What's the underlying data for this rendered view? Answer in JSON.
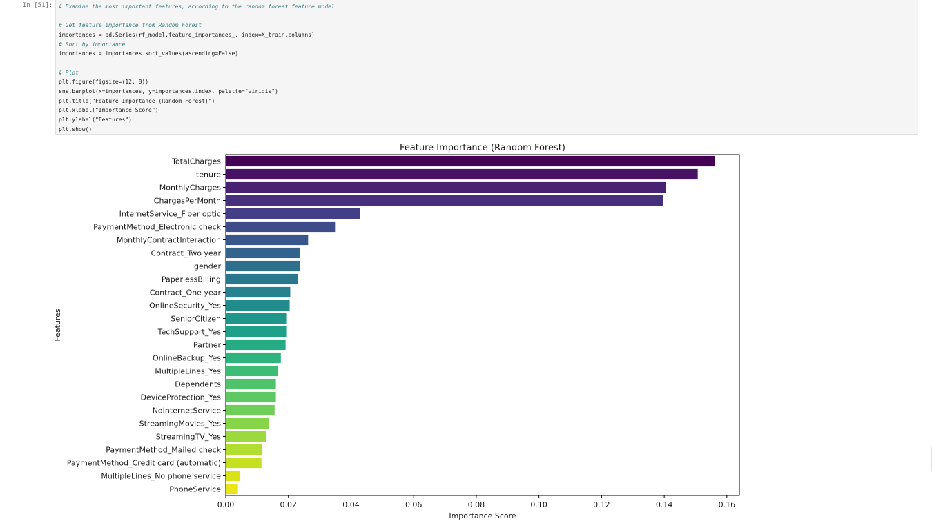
{
  "cell": {
    "prompt": "In [51]:",
    "code_lines": [
      {
        "text": "# Examine the most important features, according to the random forest feature model",
        "comment": true
      },
      {
        "text": "",
        "comment": false
      },
      {
        "text": "# Get feature importance from Random Forest",
        "comment": true
      },
      {
        "text": "importances = pd.Series(rf_model.feature_importances_, index=X_train.columns)",
        "comment": false
      },
      {
        "text": "# Sort by importance",
        "comment": true
      },
      {
        "text": "importances = importances.sort_values(ascending=False)",
        "comment": false
      },
      {
        "text": "",
        "comment": false
      },
      {
        "text": "# Plot",
        "comment": true
      },
      {
        "text": "plt.figure(figsize=(12, 8))",
        "comment": false
      },
      {
        "text": "sns.barplot(x=importances, y=importances.index, palette=\"viridis\")",
        "comment": false
      },
      {
        "text": "plt.title(\"Feature Importance (Random Forest)\")",
        "comment": false
      },
      {
        "text": "plt.xlabel(\"Importance Score\")",
        "comment": false
      },
      {
        "text": "plt.ylabel(\"Features\")",
        "comment": false
      },
      {
        "text": "plt.show()",
        "comment": false
      }
    ]
  },
  "chart_data": {
    "type": "bar",
    "orientation": "horizontal",
    "title": "Feature Importance (Random Forest)",
    "xlabel": "Importance Score",
    "ylabel": "Features",
    "xlim": [
      0,
      0.164
    ],
    "xticks": [
      0,
      0.02,
      0.04,
      0.06,
      0.08,
      0.1,
      0.12,
      0.14,
      0.16
    ],
    "xtick_labels": [
      "0.00",
      "0.02",
      "0.04",
      "0.06",
      "0.08",
      "0.10",
      "0.12",
      "0.14",
      "0.16"
    ],
    "grid": false,
    "palette": "viridis",
    "categories": [
      "TotalCharges",
      "tenure",
      "MonthlyCharges",
      "ChargesPerMonth",
      "InternetService_Fiber optic",
      "PaymentMethod_Electronic check",
      "MonthlyContractInteraction",
      "Contract_Two year",
      "gender",
      "PaperlessBilling",
      "Contract_One year",
      "OnlineSecurity_Yes",
      "SeniorCitizen",
      "TechSupport_Yes",
      "Partner",
      "OnlineBackup_Yes",
      "MultipleLines_Yes",
      "Dependents",
      "DeviceProtection_Yes",
      "NoInternetService",
      "StreamingMovies_Yes",
      "StreamingTV_Yes",
      "PaymentMethod_Mailed check",
      "PaymentMethod_Credit card (automatic)",
      "MultipleLines_No phone service",
      "PhoneService"
    ],
    "values": [
      0.1561,
      0.1507,
      0.1405,
      0.1397,
      0.0428,
      0.0349,
      0.0263,
      0.0237,
      0.0237,
      0.023,
      0.0206,
      0.0204,
      0.0193,
      0.0193,
      0.0191,
      0.0176,
      0.0166,
      0.016,
      0.016,
      0.0156,
      0.0138,
      0.013,
      0.0115,
      0.0114,
      0.0045,
      0.0039
    ],
    "colors": [
      "#440154",
      "#471164",
      "#482172",
      "#46307e",
      "#443e86",
      "#3e4c8a",
      "#39568c",
      "#33638d",
      "#2e6f8e",
      "#2a788e",
      "#26828e",
      "#228c8d",
      "#1f968b",
      "#1fa088",
      "#25ab82",
      "#2eb37c",
      "#3dbc74",
      "#4ec36b",
      "#5ec962",
      "#6ece58",
      "#86d549",
      "#9bd93c",
      "#b0dd2f",
      "#c5e021",
      "#d8e219",
      "#e8e51a"
    ]
  }
}
